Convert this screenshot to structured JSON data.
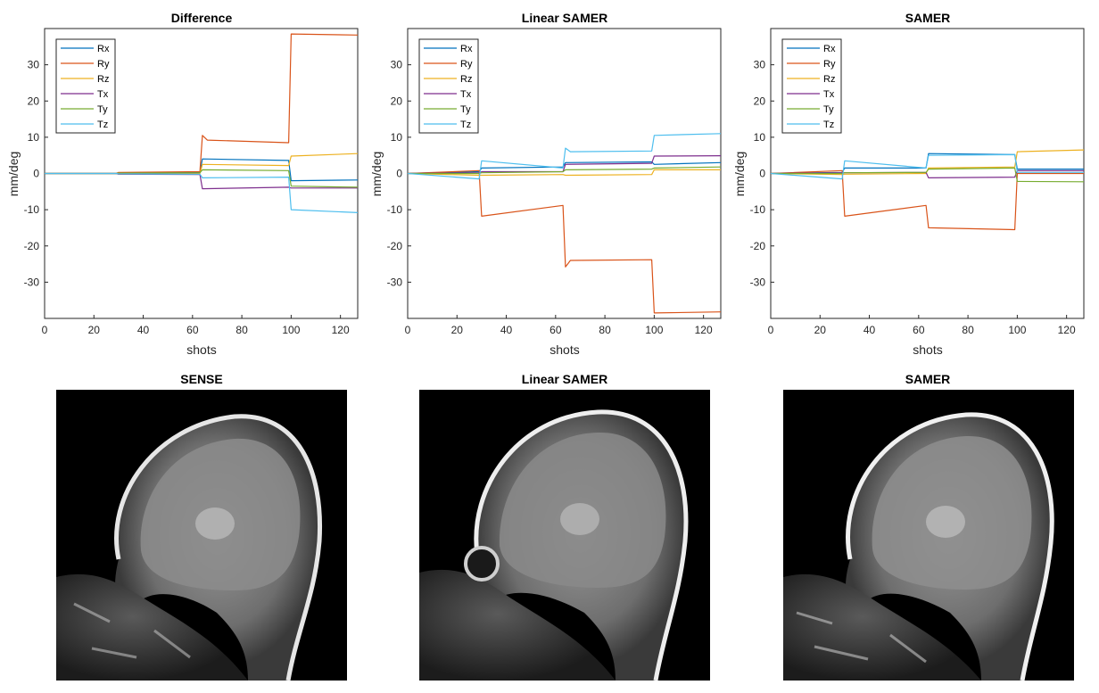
{
  "colors": {
    "Rx": "#0072bd",
    "Ry": "#d95319",
    "Rz": "#edb120",
    "Tx": "#7e2f8e",
    "Ty": "#77ac30",
    "Tz": "#4dbeee"
  },
  "chart_data": [
    {
      "type": "line",
      "title": "Difference",
      "xlabel": "shots",
      "ylabel": "mm/deg",
      "xlim": [
        0,
        127
      ],
      "ylim": [
        -40,
        40
      ],
      "xticks": [
        0,
        20,
        40,
        60,
        80,
        100,
        120
      ],
      "yticks": [
        -30,
        -20,
        -10,
        0,
        10,
        20,
        30
      ],
      "legend_position": "top-left",
      "series": [
        {
          "name": "Rx",
          "points": [
            [
              0,
              0
            ],
            [
              29,
              0
            ],
            [
              30,
              0.2
            ],
            [
              63,
              0.3
            ],
            [
              64,
              4.0
            ],
            [
              99,
              3.6
            ],
            [
              100,
              -2.0
            ],
            [
              127,
              -1.8
            ]
          ]
        },
        {
          "name": "Ry",
          "points": [
            [
              0,
              0
            ],
            [
              29,
              0
            ],
            [
              30,
              0.3
            ],
            [
              63,
              0.5
            ],
            [
              64,
              10.5
            ],
            [
              66,
              9.2
            ],
            [
              99,
              8.5
            ],
            [
              100,
              38.5
            ],
            [
              127,
              38.2
            ]
          ]
        },
        {
          "name": "Rz",
          "points": [
            [
              0,
              0
            ],
            [
              29,
              0
            ],
            [
              30,
              -0.2
            ],
            [
              63,
              0
            ],
            [
              64,
              2.5
            ],
            [
              99,
              2.2
            ],
            [
              100,
              4.8
            ],
            [
              127,
              5.5
            ]
          ]
        },
        {
          "name": "Tx",
          "points": [
            [
              0,
              0
            ],
            [
              29,
              0
            ],
            [
              30,
              -0.2
            ],
            [
              63,
              -0.3
            ],
            [
              64,
              -4.2
            ],
            [
              99,
              -3.8
            ],
            [
              100,
              -4.0
            ],
            [
              127,
              -4.0
            ]
          ]
        },
        {
          "name": "Ty",
          "points": [
            [
              0,
              0
            ],
            [
              29,
              0
            ],
            [
              30,
              0.1
            ],
            [
              63,
              0.2
            ],
            [
              64,
              1.0
            ],
            [
              99,
              0.8
            ],
            [
              100,
              -3.5
            ],
            [
              127,
              -3.8
            ]
          ]
        },
        {
          "name": "Tz",
          "points": [
            [
              0,
              0
            ],
            [
              29,
              0
            ],
            [
              30,
              -0.1
            ],
            [
              63,
              -0.2
            ],
            [
              64,
              -1.2
            ],
            [
              99,
              -1.0
            ],
            [
              100,
              -10.0
            ],
            [
              127,
              -10.8
            ]
          ]
        }
      ]
    },
    {
      "type": "line",
      "title": "Linear SAMER",
      "xlabel": "shots",
      "ylabel": "mm/deg",
      "xlim": [
        0,
        127
      ],
      "ylim": [
        -40,
        40
      ],
      "xticks": [
        0,
        20,
        40,
        60,
        80,
        100,
        120
      ],
      "yticks": [
        -30,
        -20,
        -10,
        0,
        10,
        20,
        30
      ],
      "legend_position": "top-left",
      "series": [
        {
          "name": "Rx",
          "points": [
            [
              0,
              0
            ],
            [
              29,
              0.5
            ],
            [
              30,
              1.5
            ],
            [
              63,
              1.8
            ],
            [
              64,
              3.0
            ],
            [
              99,
              3.2
            ],
            [
              100,
              2.5
            ],
            [
              127,
              3.0
            ]
          ]
        },
        {
          "name": "Ry",
          "points": [
            [
              0,
              0
            ],
            [
              29,
              0.8
            ],
            [
              30,
              -11.8
            ],
            [
              63,
              -8.8
            ],
            [
              64,
              -25.8
            ],
            [
              66,
              -24.0
            ],
            [
              99,
              -23.8
            ],
            [
              100,
              -38.5
            ],
            [
              127,
              -38.2
            ]
          ]
        },
        {
          "name": "Rz",
          "points": [
            [
              0,
              0
            ],
            [
              29,
              -0.5
            ],
            [
              30,
              -0.5
            ],
            [
              63,
              -0.3
            ],
            [
              64,
              -0.5
            ],
            [
              99,
              -0.3
            ],
            [
              100,
              1.0
            ],
            [
              127,
              1.0
            ]
          ]
        },
        {
          "name": "Tx",
          "points": [
            [
              0,
              0
            ],
            [
              29,
              0.2
            ],
            [
              30,
              0.5
            ],
            [
              63,
              0.5
            ],
            [
              64,
              2.5
            ],
            [
              99,
              2.8
            ],
            [
              100,
              4.8
            ],
            [
              127,
              4.9
            ]
          ]
        },
        {
          "name": "Ty",
          "points": [
            [
              0,
              0
            ],
            [
              29,
              0
            ],
            [
              30,
              0.2
            ],
            [
              63,
              0.5
            ],
            [
              64,
              1.0
            ],
            [
              99,
              1.2
            ],
            [
              100,
              1.5
            ],
            [
              127,
              1.8
            ]
          ]
        },
        {
          "name": "Tz",
          "points": [
            [
              0,
              0
            ],
            [
              29,
              -1.5
            ],
            [
              30,
              3.5
            ],
            [
              63,
              1.5
            ],
            [
              64,
              7.0
            ],
            [
              66,
              6.0
            ],
            [
              99,
              6.2
            ],
            [
              100,
              10.5
            ],
            [
              127,
              11.0
            ]
          ]
        }
      ]
    },
    {
      "type": "line",
      "title": "SAMER",
      "xlabel": "shots",
      "ylabel": "mm/deg",
      "xlim": [
        0,
        127
      ],
      "ylim": [
        -40,
        40
      ],
      "xticks": [
        0,
        20,
        40,
        60,
        80,
        100,
        120
      ],
      "yticks": [
        -30,
        -20,
        -10,
        0,
        10,
        20,
        30
      ],
      "legend_position": "top-left",
      "series": [
        {
          "name": "Rx",
          "points": [
            [
              0,
              0
            ],
            [
              29,
              0.3
            ],
            [
              30,
              1.5
            ],
            [
              63,
              1.5
            ],
            [
              64,
              5.5
            ],
            [
              99,
              5.2
            ],
            [
              100,
              1.2
            ],
            [
              127,
              1.2
            ]
          ]
        },
        {
          "name": "Ry",
          "points": [
            [
              0,
              0
            ],
            [
              29,
              0.8
            ],
            [
              30,
              -11.8
            ],
            [
              63,
              -8.8
            ],
            [
              64,
              -15.0
            ],
            [
              99,
              -15.5
            ],
            [
              100,
              0
            ],
            [
              127,
              0
            ]
          ]
        },
        {
          "name": "Rz",
          "points": [
            [
              0,
              0
            ],
            [
              29,
              -0.3
            ],
            [
              30,
              -0.2
            ],
            [
              63,
              0
            ],
            [
              64,
              1.5
            ],
            [
              99,
              1.8
            ],
            [
              100,
              6.0
            ],
            [
              127,
              6.5
            ]
          ]
        },
        {
          "name": "Tx",
          "points": [
            [
              0,
              0
            ],
            [
              29,
              0.2
            ],
            [
              30,
              0.2
            ],
            [
              63,
              0.3
            ],
            [
              64,
              -1.2
            ],
            [
              99,
              -1.0
            ],
            [
              100,
              0.8
            ],
            [
              127,
              0.8
            ]
          ]
        },
        {
          "name": "Ty",
          "points": [
            [
              0,
              0
            ],
            [
              29,
              0
            ],
            [
              30,
              0.2
            ],
            [
              63,
              0.3
            ],
            [
              64,
              1.2
            ],
            [
              99,
              1.5
            ],
            [
              100,
              -2.2
            ],
            [
              127,
              -2.3
            ]
          ]
        },
        {
          "name": "Tz",
          "points": [
            [
              0,
              0
            ],
            [
              29,
              -1.5
            ],
            [
              30,
              3.5
            ],
            [
              63,
              1.5
            ],
            [
              64,
              5.0
            ],
            [
              99,
              5.2
            ],
            [
              100,
              0.3
            ],
            [
              127,
              0.3
            ]
          ]
        }
      ]
    }
  ],
  "images": [
    {
      "title": "SENSE"
    },
    {
      "title": "Linear SAMER"
    },
    {
      "title": "SAMER"
    }
  ]
}
